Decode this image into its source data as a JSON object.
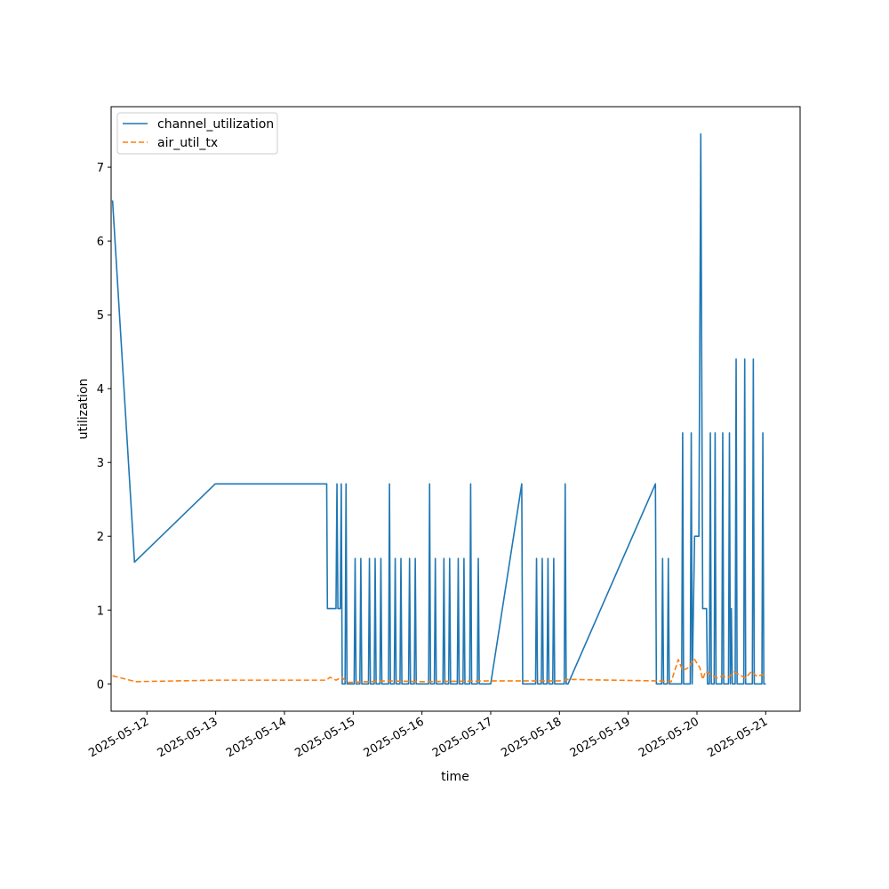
{
  "chart_data": {
    "type": "line",
    "xlabel": "time",
    "ylabel": "utilization",
    "x_axis": "date",
    "xlim": [
      "2025-05-11T11:30",
      "2025-05-21T12:00"
    ],
    "ylim": [
      -0.37,
      7.82
    ],
    "xticks": [
      "2025-05-12",
      "2025-05-13",
      "2025-05-14",
      "2025-05-15",
      "2025-05-16",
      "2025-05-17",
      "2025-05-18",
      "2025-05-19",
      "2025-05-20",
      "2025-05-21"
    ],
    "yticks": [
      0,
      1,
      2,
      3,
      4,
      5,
      6,
      7
    ],
    "grid": false,
    "legend_position": "top-left",
    "series": [
      {
        "name": "channel_utilization",
        "color": "#1f77b4",
        "dash": "solid",
        "points": [
          [
            "2025-05-11T12:00",
            6.55
          ],
          [
            "2025-05-11T19:40",
            1.65
          ],
          [
            "2025-05-12T23:50",
            2.71
          ],
          [
            "2025-05-14T14:45",
            2.71
          ],
          [
            "2025-05-14T15:00",
            1.02
          ],
          [
            "2025-05-14T18:00",
            1.02
          ],
          [
            "2025-05-14T18:20",
            2.71
          ],
          [
            "2025-05-14T18:40",
            1.02
          ],
          [
            "2025-05-14T19:30",
            1.02
          ],
          [
            "2025-05-14T19:50",
            2.71
          ],
          [
            "2025-05-14T20:10",
            0
          ],
          [
            "2025-05-14T21:10",
            0
          ],
          [
            "2025-05-14T21:30",
            2.71
          ],
          [
            "2025-05-14T21:50",
            0
          ],
          [
            "2025-05-15T00:20",
            0
          ],
          [
            "2025-05-15T00:40",
            1.7
          ],
          [
            "2025-05-15T01:00",
            0
          ],
          [
            "2025-05-15T02:20",
            0
          ],
          [
            "2025-05-15T02:40",
            1.7
          ],
          [
            "2025-05-15T03:00",
            0
          ],
          [
            "2025-05-15T05:20",
            0
          ],
          [
            "2025-05-15T05:40",
            1.7
          ],
          [
            "2025-05-15T06:00",
            0
          ],
          [
            "2025-05-15T07:20",
            0
          ],
          [
            "2025-05-15T07:40",
            1.7
          ],
          [
            "2025-05-15T08:00",
            0
          ],
          [
            "2025-05-15T09:20",
            0
          ],
          [
            "2025-05-15T09:40",
            1.7
          ],
          [
            "2025-05-15T10:00",
            0
          ],
          [
            "2025-05-15T12:20",
            0
          ],
          [
            "2025-05-15T12:40",
            2.71
          ],
          [
            "2025-05-15T13:00",
            0
          ],
          [
            "2025-05-15T14:20",
            0
          ],
          [
            "2025-05-15T14:40",
            1.7
          ],
          [
            "2025-05-15T15:00",
            0
          ],
          [
            "2025-05-15T16:20",
            0
          ],
          [
            "2025-05-15T16:40",
            1.7
          ],
          [
            "2025-05-15T17:00",
            0
          ],
          [
            "2025-05-15T19:20",
            0
          ],
          [
            "2025-05-15T19:40",
            1.7
          ],
          [
            "2025-05-15T20:00",
            0
          ],
          [
            "2025-05-15T21:20",
            0
          ],
          [
            "2025-05-15T21:40",
            1.7
          ],
          [
            "2025-05-15T22:00",
            0
          ],
          [
            "2025-05-16T02:20",
            0
          ],
          [
            "2025-05-16T02:40",
            2.71
          ],
          [
            "2025-05-16T03:00",
            0
          ],
          [
            "2025-05-16T04:20",
            0
          ],
          [
            "2025-05-16T04:40",
            1.7
          ],
          [
            "2025-05-16T05:00",
            0
          ],
          [
            "2025-05-16T07:20",
            0
          ],
          [
            "2025-05-16T07:40",
            1.7
          ],
          [
            "2025-05-16T08:00",
            0
          ],
          [
            "2025-05-16T09:20",
            0
          ],
          [
            "2025-05-16T09:40",
            1.7
          ],
          [
            "2025-05-16T10:00",
            0
          ],
          [
            "2025-05-16T12:20",
            0
          ],
          [
            "2025-05-16T12:40",
            1.7
          ],
          [
            "2025-05-16T13:00",
            0
          ],
          [
            "2025-05-16T14:20",
            0
          ],
          [
            "2025-05-16T14:40",
            1.7
          ],
          [
            "2025-05-16T15:00",
            0
          ],
          [
            "2025-05-16T16:40",
            0
          ],
          [
            "2025-05-16T17:00",
            2.71
          ],
          [
            "2025-05-16T17:20",
            0
          ],
          [
            "2025-05-16T19:20",
            0
          ],
          [
            "2025-05-16T19:40",
            1.7
          ],
          [
            "2025-05-16T20:00",
            0
          ],
          [
            "2025-05-17T00:00",
            0
          ],
          [
            "2025-05-17T10:50",
            2.71
          ],
          [
            "2025-05-17T11:10",
            0
          ],
          [
            "2025-05-17T15:40",
            0
          ],
          [
            "2025-05-17T16:00",
            1.7
          ],
          [
            "2025-05-17T16:20",
            0
          ],
          [
            "2025-05-17T17:40",
            0
          ],
          [
            "2025-05-17T18:00",
            1.7
          ],
          [
            "2025-05-17T18:20",
            0
          ],
          [
            "2025-05-17T19:40",
            0
          ],
          [
            "2025-05-17T20:00",
            1.7
          ],
          [
            "2025-05-17T20:20",
            0
          ],
          [
            "2025-05-17T21:40",
            0
          ],
          [
            "2025-05-17T22:00",
            1.7
          ],
          [
            "2025-05-17T22:20",
            0
          ],
          [
            "2025-05-18T01:40",
            0
          ],
          [
            "2025-05-18T02:00",
            2.71
          ],
          [
            "2025-05-18T02:20",
            0
          ],
          [
            "2025-05-18T03:00",
            0
          ],
          [
            "2025-05-19T09:30",
            2.71
          ],
          [
            "2025-05-19T09:50",
            0
          ],
          [
            "2025-05-19T11:40",
            0
          ],
          [
            "2025-05-19T12:00",
            1.7
          ],
          [
            "2025-05-19T12:20",
            0
          ],
          [
            "2025-05-19T13:40",
            0
          ],
          [
            "2025-05-19T14:00",
            1.7
          ],
          [
            "2025-05-19T14:20",
            0
          ],
          [
            "2025-05-19T18:40",
            0
          ],
          [
            "2025-05-19T19:00",
            3.4
          ],
          [
            "2025-05-19T19:20",
            0
          ],
          [
            "2025-05-19T21:40",
            0
          ],
          [
            "2025-05-19T22:00",
            3.4
          ],
          [
            "2025-05-19T22:20",
            0
          ],
          [
            "2025-05-19T23:10",
            2.0
          ],
          [
            "2025-05-20T00:40",
            2.0
          ],
          [
            "2025-05-20T01:20",
            7.45
          ],
          [
            "2025-05-20T02:00",
            1.02
          ],
          [
            "2025-05-20T03:20",
            1.02
          ],
          [
            "2025-05-20T03:40",
            0
          ],
          [
            "2025-05-20T04:20",
            0
          ],
          [
            "2025-05-20T04:40",
            3.4
          ],
          [
            "2025-05-20T05:00",
            0
          ],
          [
            "2025-05-20T06:00",
            0
          ],
          [
            "2025-05-20T06:20",
            3.4
          ],
          [
            "2025-05-20T06:40",
            0
          ],
          [
            "2025-05-20T08:40",
            0
          ],
          [
            "2025-05-20T09:00",
            3.4
          ],
          [
            "2025-05-20T09:20",
            0
          ],
          [
            "2025-05-20T11:00",
            0
          ],
          [
            "2025-05-20T11:20",
            3.4
          ],
          [
            "2025-05-20T11:40",
            0
          ],
          [
            "2025-05-20T12:00",
            1.02
          ],
          [
            "2025-05-20T12:20",
            0
          ],
          [
            "2025-05-20T13:20",
            0
          ],
          [
            "2025-05-20T13:40",
            4.4
          ],
          [
            "2025-05-20T14:00",
            0
          ],
          [
            "2025-05-20T16:20",
            0
          ],
          [
            "2025-05-20T16:40",
            4.4
          ],
          [
            "2025-05-20T17:00",
            0
          ],
          [
            "2025-05-20T19:20",
            0
          ],
          [
            "2025-05-20T19:40",
            4.4
          ],
          [
            "2025-05-20T20:00",
            0
          ],
          [
            "2025-05-20T22:40",
            0
          ],
          [
            "2025-05-20T23:00",
            3.4
          ],
          [
            "2025-05-20T23:20",
            0
          ],
          [
            "2025-05-21T00:00",
            0
          ]
        ]
      },
      {
        "name": "air_util_tx",
        "color": "#ff7f0e",
        "dash": "dashed",
        "points": [
          [
            "2025-05-11T12:00",
            0.11
          ],
          [
            "2025-05-11T20:00",
            0.03
          ],
          [
            "2025-05-13T00:00",
            0.05
          ],
          [
            "2025-05-14T14:30",
            0.05
          ],
          [
            "2025-05-14T16:00",
            0.09
          ],
          [
            "2025-05-14T18:00",
            0.05
          ],
          [
            "2025-05-14T20:00",
            0.09
          ],
          [
            "2025-05-14T22:00",
            0.02
          ],
          [
            "2025-05-15T12:00",
            0.04
          ],
          [
            "2025-05-16T00:00",
            0.03
          ],
          [
            "2025-05-17T00:00",
            0.04
          ],
          [
            "2025-05-18T00:00",
            0.04
          ],
          [
            "2025-05-18T03:00",
            0.06
          ],
          [
            "2025-05-19T10:00",
            0.04
          ],
          [
            "2025-05-19T15:00",
            0.03
          ],
          [
            "2025-05-19T17:30",
            0.33
          ],
          [
            "2025-05-19T19:00",
            0.18
          ],
          [
            "2025-05-19T21:00",
            0.22
          ],
          [
            "2025-05-19T23:00",
            0.34
          ],
          [
            "2025-05-20T01:00",
            0.22
          ],
          [
            "2025-05-20T02:00",
            0.06
          ],
          [
            "2025-05-20T03:00",
            0.17
          ],
          [
            "2025-05-20T05:00",
            0.12
          ],
          [
            "2025-05-20T07:00",
            0.08
          ],
          [
            "2025-05-20T09:00",
            0.11
          ],
          [
            "2025-05-20T11:00",
            0.09
          ],
          [
            "2025-05-20T13:00",
            0.16
          ],
          [
            "2025-05-20T15:00",
            0.12
          ],
          [
            "2025-05-20T17:00",
            0.08
          ],
          [
            "2025-05-20T19:00",
            0.17
          ],
          [
            "2025-05-20T21:00",
            0.1
          ],
          [
            "2025-05-20T23:00",
            0.13
          ],
          [
            "2025-05-21T00:00",
            0.1
          ]
        ]
      }
    ]
  }
}
